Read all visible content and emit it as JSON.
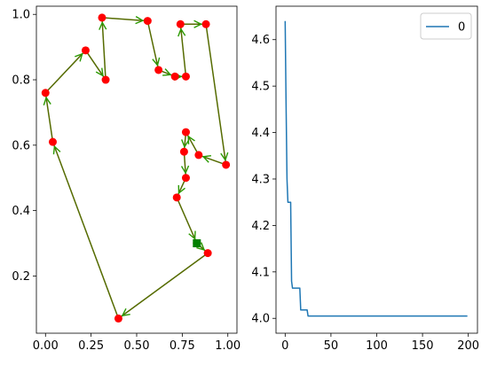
{
  "chart_data": [
    {
      "type": "line",
      "title": "",
      "xlabel": "",
      "ylabel": "",
      "xlim": [
        -0.05,
        1.05
      ],
      "ylim": [
        0.025,
        1.025
      ],
      "xticks": [
        "0.00",
        "0.25",
        "0.50",
        "0.75",
        "1.00"
      ],
      "yticks": [
        "0.2",
        "0.4",
        "0.6",
        "0.8",
        "1.0"
      ],
      "grid": false,
      "colors": {
        "route": "#556b00",
        "arrow": "#2a9a00",
        "city": "#ff0000",
        "start": "#008000"
      },
      "series": [
        {
          "x": [
            0.83,
            0.89,
            0.4,
            0.04,
            0.0,
            0.22,
            0.33,
            0.31,
            0.56,
            0.62,
            0.71,
            0.77,
            0.74,
            0.88,
            0.99,
            0.84,
            0.77,
            0.76,
            0.77,
            0.72,
            0.83
          ],
          "y": [
            0.3,
            0.27,
            0.07,
            0.61,
            0.76,
            0.89,
            0.8,
            0.99,
            0.98,
            0.83,
            0.81,
            0.81,
            0.97,
            0.97,
            0.54,
            0.57,
            0.64,
            0.58,
            0.5,
            0.44,
            0.3
          ]
        }
      ],
      "start": {
        "x": 0.83,
        "y": 0.3
      }
    },
    {
      "type": "line",
      "title": "",
      "xlabel": "",
      "ylabel": "",
      "xlim": [
        -10,
        210
      ],
      "ylim": [
        3.968,
        4.672
      ],
      "xticks": [
        "0",
        "50",
        "100",
        "150",
        "200"
      ],
      "yticks": [
        "4.0",
        "4.1",
        "4.2",
        "4.3",
        "4.4",
        "4.5",
        "4.6"
      ],
      "grid": false,
      "legend": {
        "position": "upper-right"
      },
      "series": [
        {
          "name": "0",
          "color": "#1f77b4",
          "x": [
            0,
            1,
            2,
            3,
            4,
            5,
            6,
            7,
            8,
            9,
            10,
            12,
            14,
            16,
            17,
            24,
            25,
            199
          ],
          "y": [
            4.64,
            4.46,
            4.3,
            4.25,
            4.25,
            4.25,
            4.25,
            4.08,
            4.065,
            4.065,
            4.065,
            4.065,
            4.065,
            4.065,
            4.018,
            4.018,
            4.005,
            4.005
          ]
        }
      ]
    }
  ]
}
